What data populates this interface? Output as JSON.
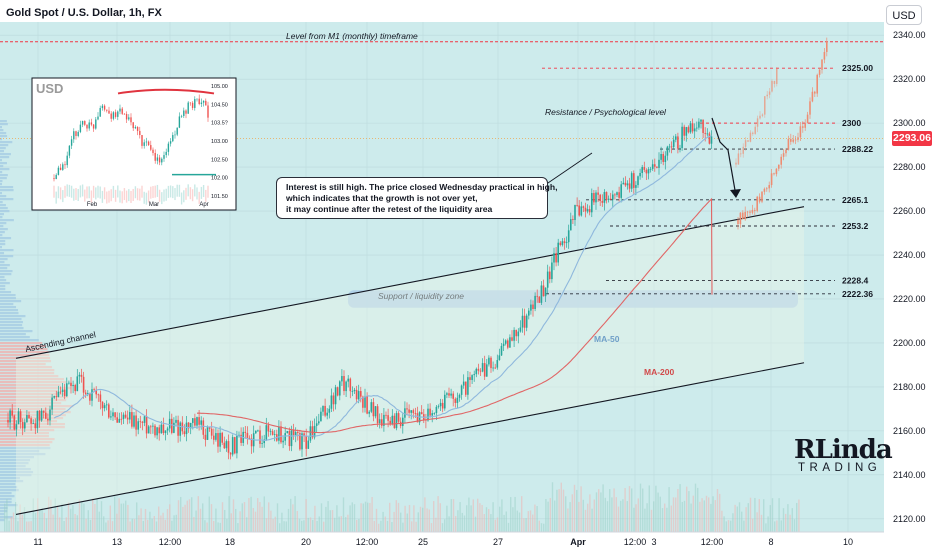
{
  "header": {
    "title": "Gold Spot / U.S. Dollar, 1h, FX",
    "currency_button": "USD"
  },
  "current_price_tag": "2293.06",
  "note_text": [
    "Interest is still high. The price closed Wednesday practical in high,",
    "which indicates that the growth is not over yet,",
    "it may continue after the retest of the liquidity area"
  ],
  "logo": {
    "top": "RLinda",
    "bottom": "TRADING"
  },
  "colors": {
    "background": "#cdebec",
    "bull": "#26a69a",
    "bear": "#ef5350",
    "level": "#f23645",
    "zone": "#a9cbe8",
    "ma50": "#8fb8dd",
    "ma200": "#e06666",
    "projection": "#ef8a6f"
  },
  "chart_data": {
    "type": "candlestick",
    "title": "Gold Spot / U.S. Dollar, 1h, FX",
    "y_range": [
      2114,
      2346
    ],
    "y_ticks": [
      2120,
      2140,
      2160,
      2180,
      2200,
      2220,
      2240,
      2260,
      2280,
      2300,
      2320,
      2340
    ],
    "x_ticks": [
      "11",
      "13",
      "12:00",
      "18",
      "20",
      "12:00",
      "25",
      "27",
      "Apr",
      "12:00",
      "3",
      "12:00",
      "8",
      "10"
    ],
    "grid": true,
    "price_levels": [
      {
        "label": "2325.00",
        "value": 2325.0
      },
      {
        "label": "2300",
        "value": 2300
      },
      {
        "label": "2288.22",
        "value": 2288.22
      },
      {
        "label": "2265.1",
        "value": 2265.1
      },
      {
        "label": "2253.2",
        "value": 2253.2
      },
      {
        "label": "2228.4",
        "value": 2228.4
      },
      {
        "label": "2222.36",
        "value": 2222.36
      }
    ],
    "annotations": [
      "Level from M1 (monthly) timeframe",
      "Resistance / Psychological level",
      "Support / liquidity zone",
      "Ascending channel",
      "MA-50",
      "MA-200"
    ],
    "monthly_level": 2337,
    "support_zone": [
      2216,
      2224
    ],
    "ascending_channel": {
      "upper": [
        [
          "11",
          2193
        ],
        [
          "8",
          2262
        ]
      ],
      "lower": [
        [
          "11",
          2122
        ],
        [
          "8",
          2191
        ]
      ]
    },
    "price_path": [
      {
        "date": "11",
        "close": 2165
      },
      {
        "date": "12",
        "close": 2182
      },
      {
        "date": "13",
        "close": 2165
      },
      {
        "date": "14",
        "close": 2162
      },
      {
        "date": "15",
        "close": 2162
      },
      {
        "date": "18",
        "close": 2153
      },
      {
        "date": "19",
        "close": 2160
      },
      {
        "date": "20",
        "close": 2155
      },
      {
        "date": "21",
        "close": 2183
      },
      {
        "date": "22",
        "close": 2164
      },
      {
        "date": "25",
        "close": 2168
      },
      {
        "date": "26",
        "close": 2178
      },
      {
        "date": "27",
        "close": 2193
      },
      {
        "date": "28",
        "close": 2222
      },
      {
        "date": "Apr",
        "close": 2262
      },
      {
        "date": "2",
        "close": 2268
      },
      {
        "date": "3",
        "close": 2282
      },
      {
        "date": "4",
        "close": 2300
      },
      {
        "date": "5",
        "close": 2293
      }
    ],
    "projections": [
      {
        "name": "scenario-a",
        "values": [
          2282,
          2300,
          2325
        ]
      },
      {
        "name": "scenario-b",
        "values": [
          2256,
          2265,
          2288,
          2300,
          2338
        ]
      }
    ],
    "inset": {
      "title": "USD",
      "y_ticks": [
        "105.00",
        "104.50",
        "103.5?",
        "103.00",
        "102.50",
        "102.00",
        "101.50"
      ],
      "y_range": [
        101.4,
        105.1
      ],
      "x_ticks": [
        "Feb",
        "Mar",
        "Apr"
      ],
      "values": [
        102.0,
        102.4,
        103.4,
        103.9,
        103.7,
        104.6,
        104.0,
        104.3,
        103.8,
        103.3,
        102.9,
        102.5,
        103.2,
        103.9,
        104.4,
        104.7,
        104.2
      ]
    }
  }
}
